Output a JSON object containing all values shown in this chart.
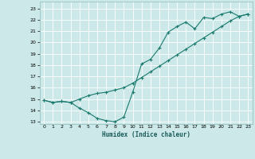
{
  "title": "",
  "xlabel": "Humidex (Indice chaleur)",
  "ylabel": "",
  "bg_color": "#cce8e8",
  "grid_color": "#ffffff",
  "line_color": "#1a7a6e",
  "xlim": [
    -0.5,
    23.5
  ],
  "ylim": [
    12.8,
    23.6
  ],
  "yticks": [
    13,
    14,
    15,
    16,
    17,
    18,
    19,
    20,
    21,
    22,
    23
  ],
  "xticks": [
    0,
    1,
    2,
    3,
    4,
    5,
    6,
    7,
    8,
    9,
    10,
    11,
    12,
    13,
    14,
    15,
    16,
    17,
    18,
    19,
    20,
    21,
    22,
    23
  ],
  "line1_x": [
    0,
    1,
    2,
    3,
    4,
    5,
    6,
    7,
    8,
    9,
    10,
    11,
    12,
    13,
    14,
    15,
    16,
    17,
    18,
    19,
    20,
    21,
    22,
    23
  ],
  "line1_y": [
    14.9,
    14.7,
    14.8,
    14.7,
    14.2,
    13.8,
    13.3,
    13.1,
    13.0,
    13.4,
    15.6,
    18.1,
    18.5,
    19.5,
    20.9,
    21.4,
    21.8,
    21.2,
    22.2,
    22.1,
    22.5,
    22.7,
    22.3,
    22.5
  ],
  "line2_x": [
    0,
    1,
    2,
    3,
    4,
    5,
    6,
    7,
    8,
    9,
    10,
    11,
    12,
    13,
    14,
    15,
    16,
    17,
    18,
    19,
    20,
    21,
    22,
    23
  ],
  "line2_y": [
    14.9,
    14.7,
    14.8,
    14.7,
    15.0,
    15.3,
    15.5,
    15.6,
    15.8,
    16.0,
    16.4,
    16.9,
    17.4,
    17.9,
    18.4,
    18.9,
    19.4,
    19.9,
    20.4,
    20.9,
    21.4,
    21.9,
    22.3,
    22.5
  ]
}
